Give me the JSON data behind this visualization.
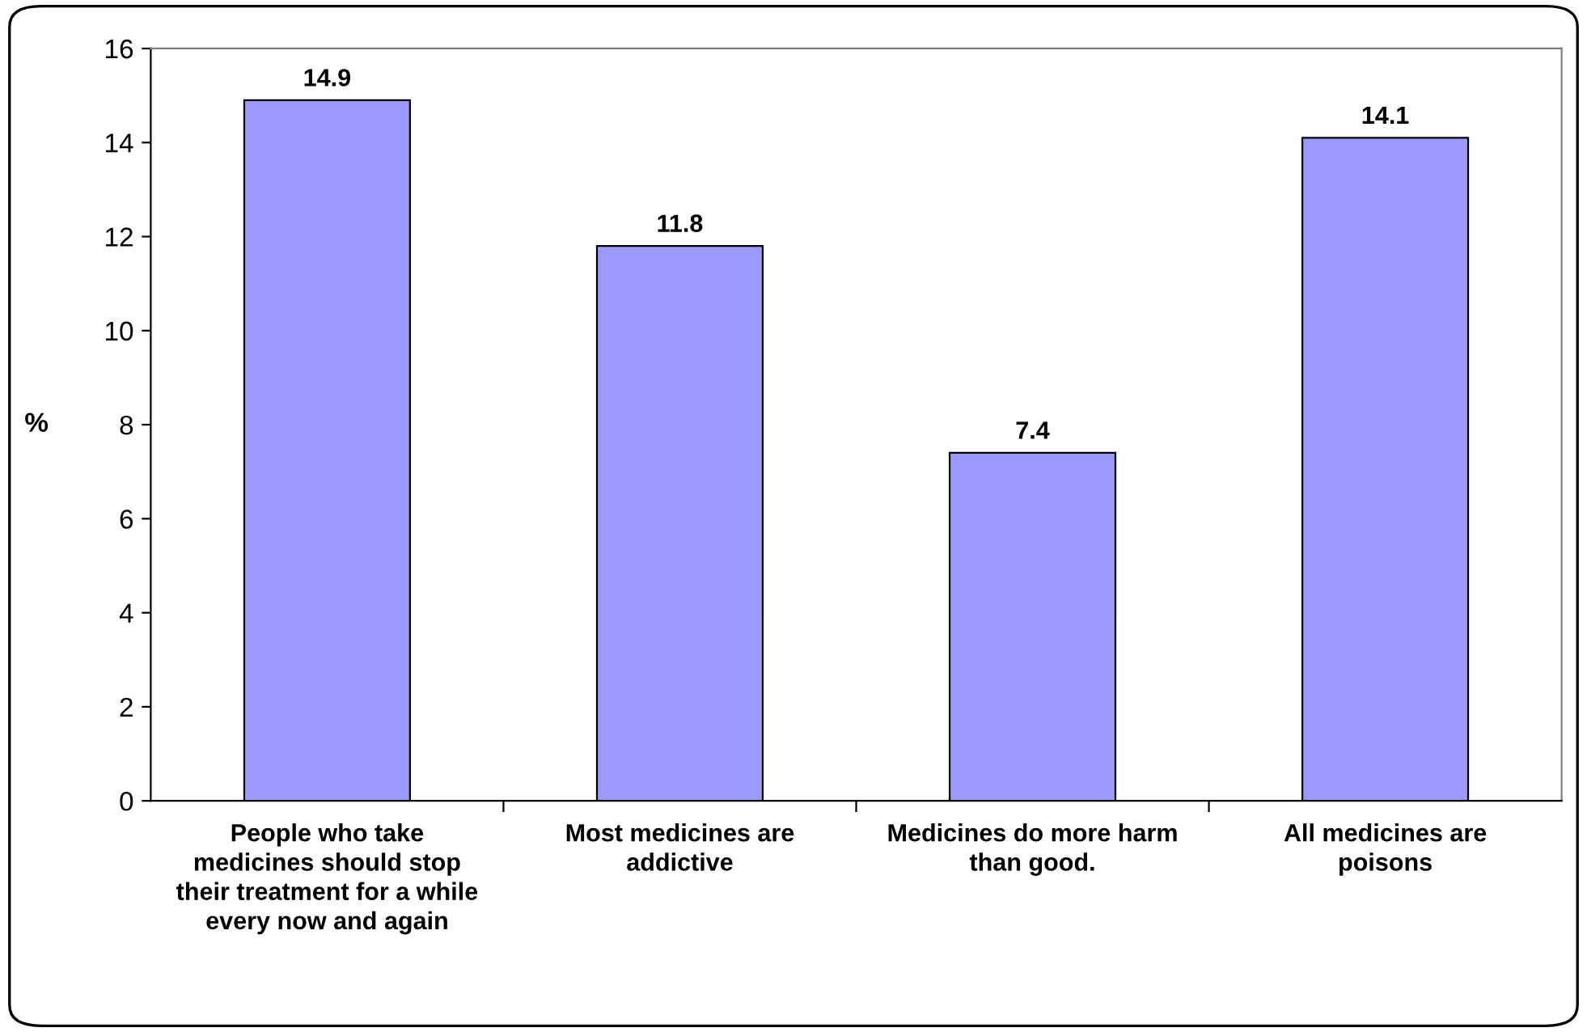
{
  "chart_data": {
    "type": "bar",
    "categories": [
      "People who take medicines should stop their treatment for a while every now and again",
      "Most medicines are addictive",
      "Medicines do more harm than good.",
      "All medicines are poisons"
    ],
    "values": [
      14.9,
      11.8,
      7.4,
      14.1
    ],
    "color": "#9999ff",
    "ylabel": "%",
    "ylim": [
      0,
      16
    ],
    "yticks": [
      0,
      2,
      4,
      6,
      8,
      10,
      12,
      14,
      16
    ],
    "data_labels": true,
    "grid": false,
    "legend": false
  }
}
